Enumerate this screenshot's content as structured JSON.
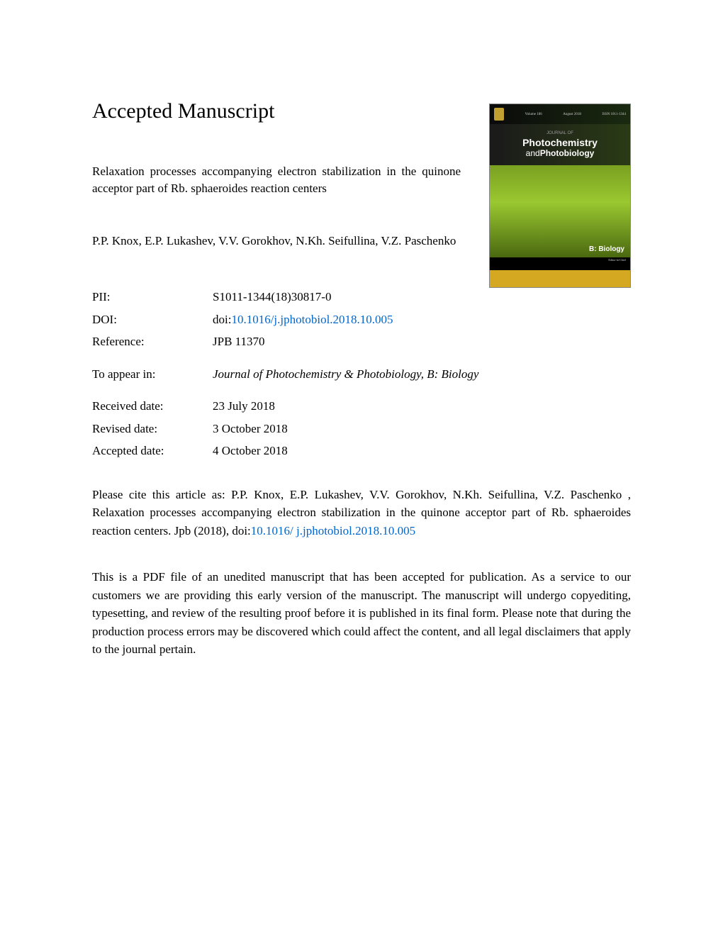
{
  "heading": "Accepted Manuscript",
  "article_title": "Relaxation processes accompanying electron stabilization in the quinone acceptor part of Rb. sphaeroides reaction centers",
  "authors": "P.P. Knox, E.P. Lukashev, V.V. Gorokhov, N.Kh. Seifullina, V.Z. Paschenko",
  "meta": {
    "pii_label": "PII:",
    "pii_value": "S1011-1344(18)30817-0",
    "doi_label": "DOI:",
    "doi_prefix": "doi:",
    "doi_link": "10.1016/j.jphotobiol.2018.10.005",
    "reference_label": "Reference:",
    "reference_value": "JPB 11370",
    "appear_label": "To appear in:",
    "appear_value": "Journal of Photochemistry & Photobiology, B: Biology",
    "received_label": "Received date:",
    "received_value": "23 July 2018",
    "revised_label": "Revised date:",
    "revised_value": "3 October 2018",
    "accepted_label": "Accepted date:",
    "accepted_value": "4 October 2018"
  },
  "citation": {
    "text_before": "Please cite this article as: P.P. Knox, E.P. Lukashev, V.V. Gorokhov, N.Kh. Seifullina, V.Z. Paschenko , Relaxation processes accompanying electron stabilization in the quinone acceptor part of Rb. sphaeroides reaction centers. Jpb (2018), doi:",
    "link1": "10.1016/",
    "link2": "j.jphotobiol.2018.10.005"
  },
  "disclaimer": "This is a PDF file of an unedited manuscript that has been accepted for publication. As a service to our customers we are providing this early version of the manuscript. The manuscript will undergo copyediting, typesetting, and review of the resulting proof before it is published in its final form. Please note that during the production process errors may be discovered which could affect the content, and all legal disclaimers that apply to the journal pertain.",
  "cover": {
    "journal_small": "JOURNAL OF",
    "journal_line1": "Photochemistry",
    "journal_line2_and": "and",
    "journal_line2_photo": "Photobiology",
    "section": "B: Biology",
    "volume": "Volume 186",
    "date": "August 2018",
    "issn": "ISSN 1011-1344",
    "editors_label": "Editor-in-Chief",
    "colors": {
      "top_bg": "#0a0a0a",
      "title_bg": "#1a1a1a",
      "mid_gradient_top": "#7aa020",
      "mid_gradient_mid": "#9ac830",
      "mid_gradient_bottom": "#4a6810",
      "bottom_bg": "#d4a820"
    }
  },
  "colors": {
    "text": "#000000",
    "link": "#0066cc",
    "background": "#ffffff"
  },
  "fonts": {
    "body_family": "Times New Roman",
    "body_size_pt": 13,
    "heading_size_pt": 22
  }
}
